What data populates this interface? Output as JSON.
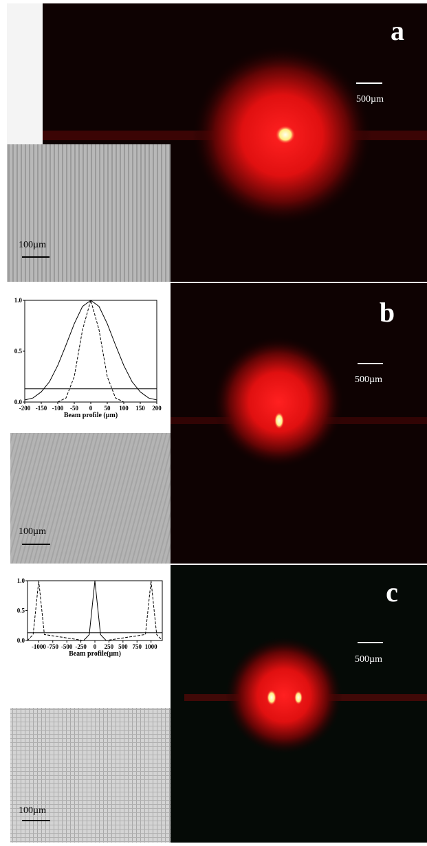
{
  "panels": [
    {
      "label": "a",
      "scale_photo": "500µm",
      "scale_micro": "100µm"
    },
    {
      "label": "b",
      "scale_photo": "500µm",
      "scale_micro": "100µm"
    },
    {
      "label": "c",
      "scale_photo": "500µm",
      "scale_micro": "100µm"
    }
  ],
  "chart_data": [
    {
      "type": "line",
      "xlabel": "Beam profile (µm)",
      "x": [
        -200,
        -175,
        -150,
        -125,
        -100,
        -75,
        -50,
        -25,
        0,
        25,
        50,
        75,
        100,
        125,
        150,
        175,
        200
      ],
      "series": [
        {
          "color": "#000000",
          "dash": false,
          "values": [
            0.02,
            0.04,
            0.1,
            0.2,
            0.36,
            0.56,
            0.77,
            0.94,
            1,
            0.94,
            0.77,
            0.56,
            0.36,
            0.2,
            0.1,
            0.04,
            0.02
          ]
        },
        {
          "color": "#000000",
          "dash": true,
          "values": [
            0,
            0,
            0,
            0,
            0,
            0.04,
            0.25,
            0.71,
            1,
            0.71,
            0.25,
            0.04,
            0,
            0,
            0,
            0,
            0
          ]
        },
        {
          "color": "#000000",
          "dash": false,
          "values": [
            0.13,
            0.13,
            0.13,
            0.13,
            0.13,
            0.13,
            0.13,
            0.13,
            0.13,
            0.13,
            0.13,
            0.13,
            0.13,
            0.13,
            0.13,
            0.13,
            0.13
          ]
        }
      ],
      "xlim": [
        -200,
        200
      ],
      "ylim": [
        0,
        1
      ],
      "xticks": [
        -200,
        -150,
        -100,
        -50,
        0,
        50,
        100,
        150,
        200
      ],
      "yticks": [
        {
          "value": 0,
          "label": "0.0"
        },
        0.5,
        {
          "value": 1,
          "label": "1.0"
        }
      ]
    },
    {
      "type": "line",
      "xlabel": "Beam profile(µm)",
      "x": [
        -1200,
        -1100,
        -1050,
        -1000,
        -950,
        -900,
        -200,
        -100,
        -50,
        0,
        50,
        100,
        200,
        900,
        950,
        1000,
        1050,
        1100,
        1200
      ],
      "series": [
        {
          "color": "#000000",
          "dash": false,
          "values": [
            0,
            0,
            0,
            0,
            0,
            0,
            0,
            0.1,
            0.55,
            1,
            0.55,
            0.1,
            0,
            0,
            0,
            0,
            0,
            0,
            0
          ]
        },
        {
          "color": "#000000",
          "dash": true,
          "values": [
            0,
            0.1,
            0.55,
            1,
            0.55,
            0.1,
            0,
            0,
            0,
            0,
            0,
            0,
            0,
            0.1,
            0.55,
            1,
            0.55,
            0.1,
            0
          ]
        },
        {
          "color": "#000000",
          "dash": false,
          "values": [
            0.13,
            0.13,
            0.13,
            0.13,
            0.13,
            0.13,
            0.13,
            0.13,
            0.13,
            0.13,
            0.13,
            0.13,
            0.13,
            0.13,
            0.13,
            0.13,
            0.13,
            0.13,
            0.13
          ]
        }
      ],
      "xlim": [
        -1200,
        1200
      ],
      "ylim": [
        0,
        1
      ],
      "xticks": [
        -1000,
        -750,
        -500,
        -250,
        0,
        250,
        500,
        750,
        1000
      ],
      "yticks": [
        {
          "value": 0,
          "label": "0.0"
        },
        0.5,
        {
          "value": 1,
          "label": "1.0"
        }
      ]
    }
  ]
}
